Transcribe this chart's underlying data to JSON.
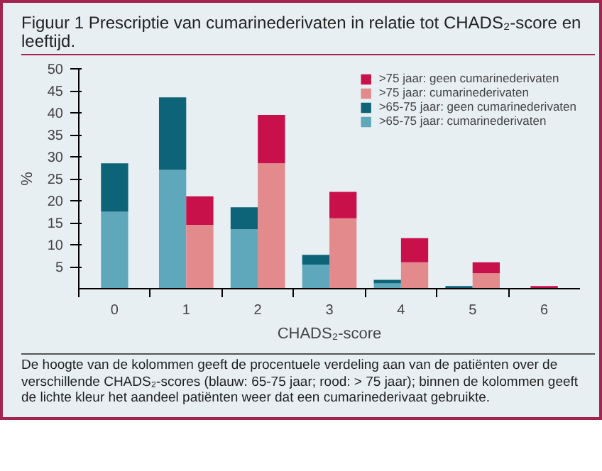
{
  "chart_data": {
    "type": "bar",
    "stacked": true,
    "title": "Figuur 1 Prescriptie van cumarinederivaten in relatie tot CHADS₂-score en leeftijd.",
    "xlabel": "CHADS₂-score",
    "ylabel": "%",
    "xlim": [
      -0.5,
      6.5
    ],
    "xticks": [
      0,
      1,
      2,
      3,
      4,
      5,
      6,
      {
        "value": -0.5,
        "label": null
      },
      {
        "value": 0.5,
        "label": null
      },
      {
        "value": 1.5,
        "label": null
      },
      {
        "value": 2.5,
        "label": null
      },
      {
        "value": 3.5,
        "label": null
      },
      {
        "value": 4.5,
        "label": null
      },
      {
        "value": 5.5,
        "label": null
      }
    ],
    "ylim": [
      0,
      50
    ],
    "yticks": [
      5,
      10,
      15,
      20,
      25,
      30,
      35,
      40,
      45,
      50
    ],
    "grid": false,
    "legend": "top right",
    "x": [
      0,
      0.81,
      1.19,
      1.81,
      2.19,
      2.81,
      3.19,
      3.81,
      4.19,
      4.81,
      5.19,
      6
    ],
    "series": [
      {
        "name": ">65-75 jaar: cumarinederivaten",
        "color": "#5fa8bb",
        "values": [
          17.5,
          27,
          null,
          13.5,
          null,
          5.5,
          null,
          1.2,
          null,
          null,
          null,
          null
        ]
      },
      {
        "name": ">65-75 jaar: geen cumarinederivaten",
        "color": "#0d6478",
        "values": [
          11,
          16.5,
          null,
          5,
          null,
          2.2,
          null,
          0.8,
          null,
          0.6,
          null,
          null
        ]
      },
      {
        "name": ">75 jaar: cumarinederivaten",
        "color": "#e28a8c",
        "values": [
          null,
          null,
          14.5,
          null,
          28.5,
          null,
          16,
          null,
          6,
          null,
          3.5,
          null
        ]
      },
      {
        "name": ">75 jaar: geen cumarinederivaten",
        "color": "#c8104a",
        "values": [
          null,
          null,
          6.5,
          null,
          11,
          null,
          6,
          null,
          5.5,
          null,
          2.5,
          0.6
        ]
      }
    ],
    "annotations": [
      "De hoogte van de kolommen geeft de procentuele verdeling aan van de patiënten over de verschillende CHADS₂-scores (blauw: 65-75 jaar; rood: > 75 jaar); binnen de kolommen geeft de lichte kleur het aandeel patiënten weer dat een cumarinederivaat gebruikte."
    ]
  }
}
